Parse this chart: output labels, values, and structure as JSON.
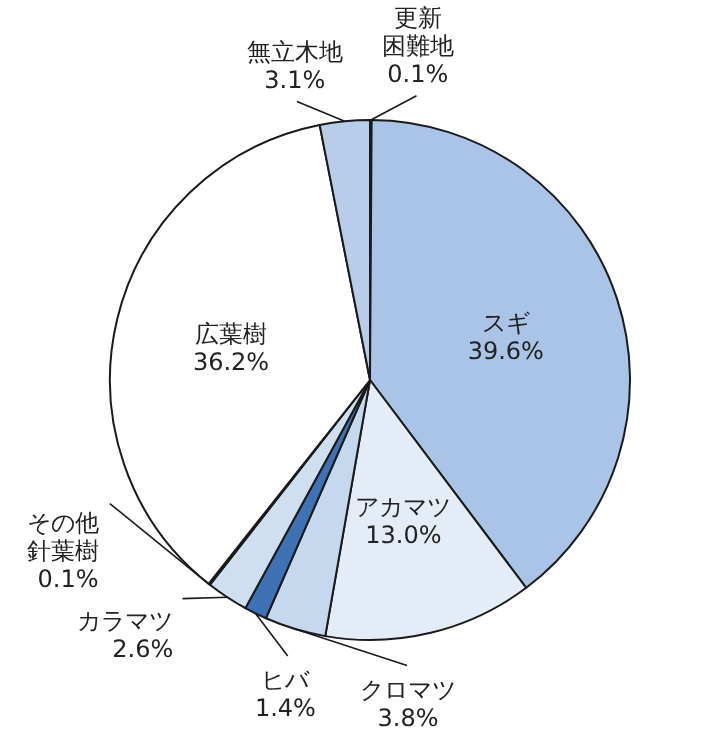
{
  "chart_data": {
    "type": "pie",
    "categories": [
      "更新困難地",
      "スギ",
      "アカマツ",
      "クロマツ",
      "ヒバ",
      "カラマツ",
      "その他針葉樹",
      "広葉樹",
      "無立木地"
    ],
    "values": [
      0.1,
      39.6,
      13.0,
      3.8,
      1.4,
      2.6,
      0.1,
      36.2,
      3.1
    ],
    "value_labels": [
      "0.1%",
      "39.6%",
      "13.0%",
      "3.8%",
      "1.4%",
      "2.6%",
      "0.1%",
      "36.2%",
      "3.1%"
    ],
    "colors": [
      "#ffffff",
      "#a9c4e6",
      "#e4ecf7",
      "#c5d8ee",
      "#3f72b5",
      "#cfdff2",
      "#ffffff",
      "#ffffff",
      "#b7cdea"
    ]
  }
}
